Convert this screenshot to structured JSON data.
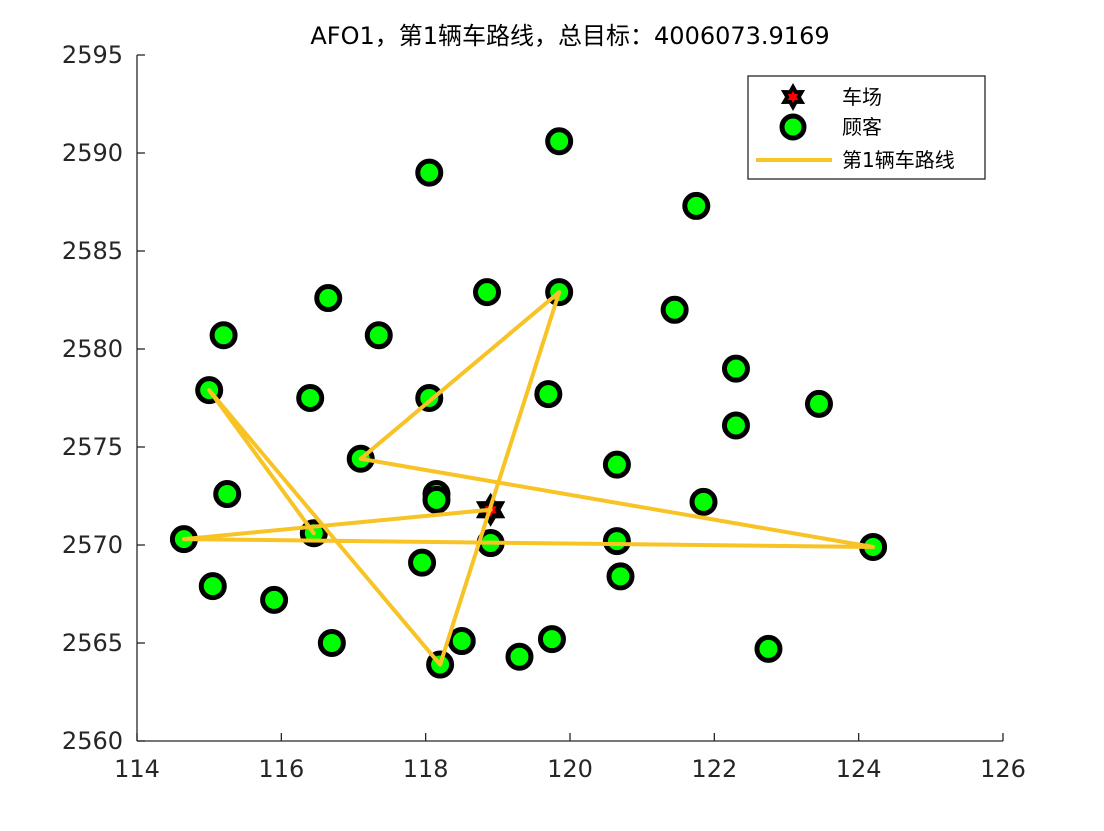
{
  "chart_data": {
    "type": "scatter",
    "title": "AFO1，第1辆车路线，总目标：4006073.9169",
    "xlabel": "",
    "ylabel": "",
    "xlim": [
      114,
      126
    ],
    "ylim": [
      2560,
      2595
    ],
    "xticks": [
      114,
      116,
      118,
      120,
      122,
      124,
      126
    ],
    "yticks": [
      2560,
      2565,
      2570,
      2575,
      2580,
      2585,
      2590,
      2595
    ],
    "grid": false,
    "legend_position": "top-right",
    "colors": {
      "depot_fill": "#ff0000",
      "depot_edge": "#000000",
      "customer_fill": "#00ff00",
      "customer_edge": "#000000",
      "route": "#f7c325",
      "axis": "#262626"
    },
    "legend": [
      {
        "label": "车场",
        "marker": "star"
      },
      {
        "label": "顾客",
        "marker": "circle"
      },
      {
        "label": "第1辆车路线",
        "marker": "line"
      }
    ],
    "depot": {
      "x": 118.9,
      "y": 2571.8
    },
    "customers": [
      [
        119.85,
        2590.6
      ],
      [
        118.05,
        2589.0
      ],
      [
        121.75,
        2587.3
      ],
      [
        116.65,
        2582.6
      ],
      [
        118.85,
        2582.9
      ],
      [
        119.85,
        2582.9
      ],
      [
        121.45,
        2582.0
      ],
      [
        115.2,
        2580.7
      ],
      [
        117.35,
        2580.7
      ],
      [
        122.3,
        2579.0
      ],
      [
        115.0,
        2577.9
      ],
      [
        116.4,
        2577.5
      ],
      [
        118.05,
        2577.5
      ],
      [
        119.7,
        2577.7
      ],
      [
        123.45,
        2577.2
      ],
      [
        122.3,
        2576.1
      ],
      [
        117.1,
        2574.4
      ],
      [
        120.65,
        2574.1
      ],
      [
        115.25,
        2572.6
      ],
      [
        118.15,
        2572.6
      ],
      [
        118.15,
        2572.3
      ],
      [
        121.85,
        2572.2
      ],
      [
        116.45,
        2570.6
      ],
      [
        114.65,
        2570.3
      ],
      [
        118.9,
        2570.1
      ],
      [
        120.65,
        2570.2
      ],
      [
        124.2,
        2569.9
      ],
      [
        117.95,
        2569.1
      ],
      [
        120.7,
        2568.4
      ],
      [
        115.05,
        2567.9
      ],
      [
        115.9,
        2567.2
      ],
      [
        116.7,
        2565.0
      ],
      [
        118.5,
        2565.1
      ],
      [
        119.75,
        2565.2
      ],
      [
        119.3,
        2564.3
      ],
      [
        118.2,
        2563.9
      ],
      [
        122.75,
        2564.7
      ]
    ],
    "series": [
      {
        "name": "第1辆车路线",
        "x": [
          118.9,
          114.65,
          124.2,
          117.1,
          119.85,
          118.2,
          115.0,
          116.45
        ],
        "y": [
          2571.8,
          2570.3,
          2569.9,
          2574.4,
          2582.9,
          2563.9,
          2577.9,
          2570.6
        ]
      }
    ]
  }
}
